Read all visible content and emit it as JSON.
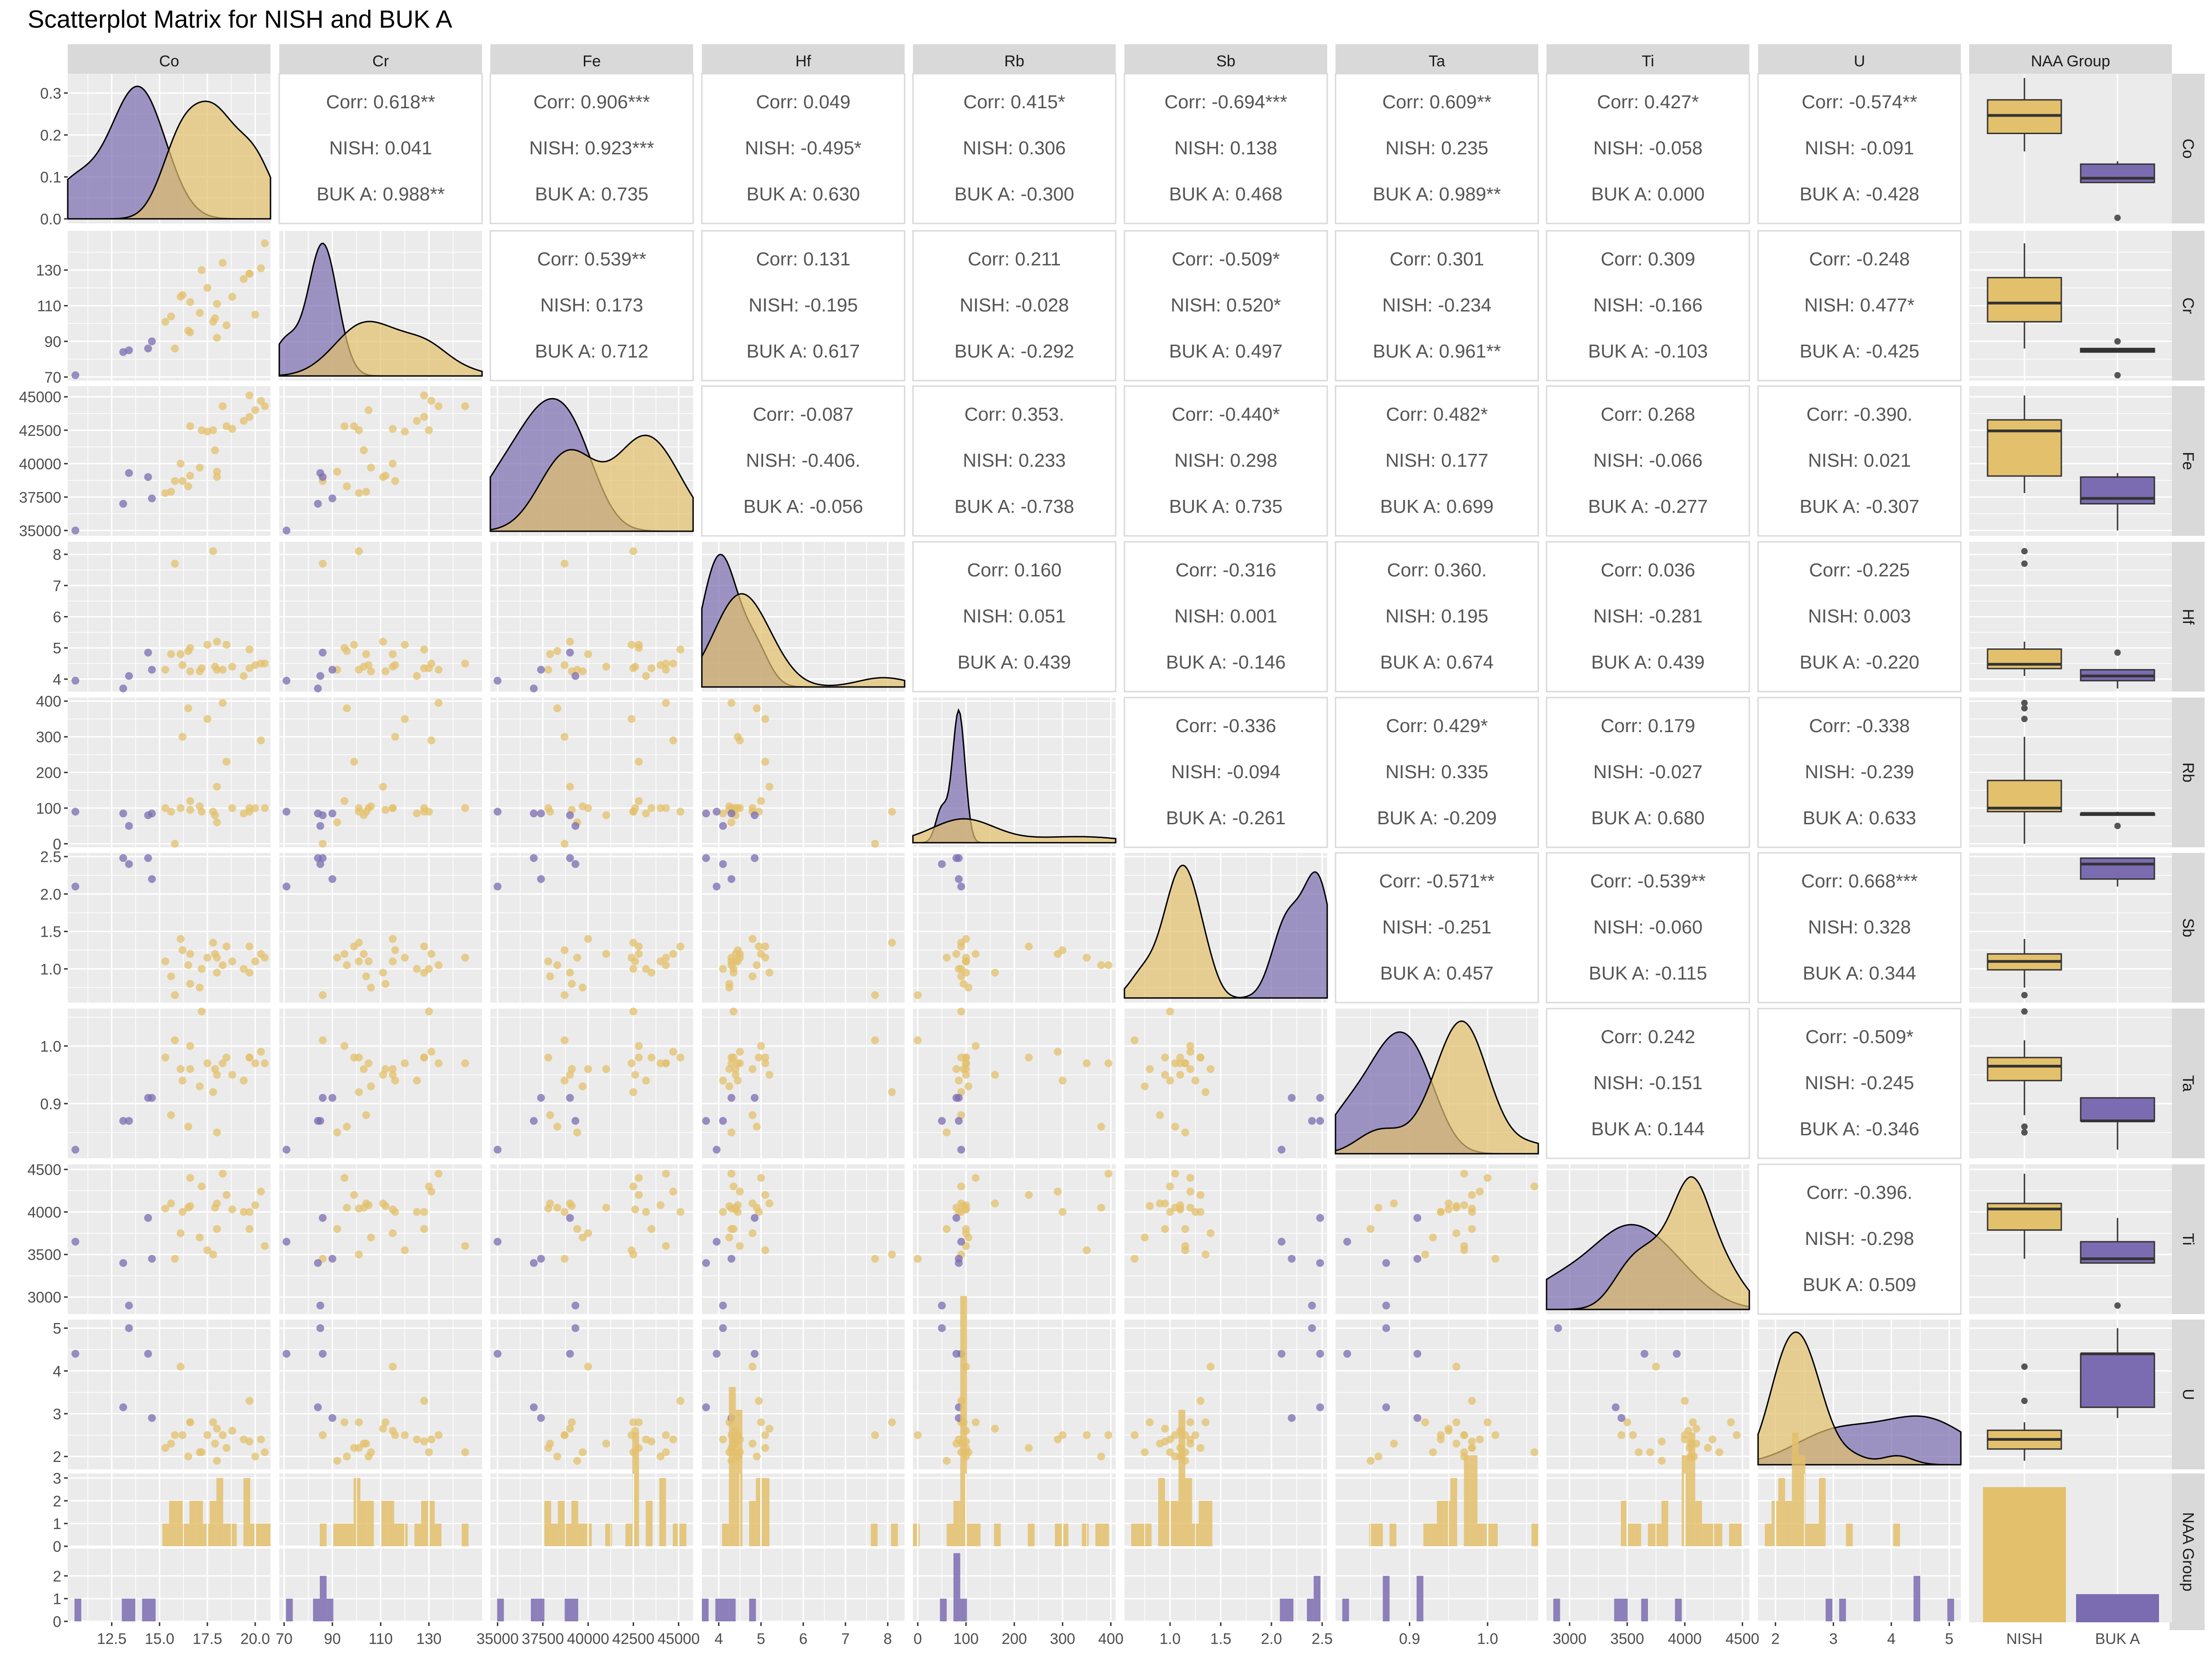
{
  "title": "Scatterplot Matrix for NISH and BUK A",
  "colors": {
    "NISH": "#e3c06c",
    "BUK A": "#7b6cb1",
    "panel_bg": "#ebebeb",
    "strip_bg": "#d9d9d9",
    "grid": "#ffffff",
    "text": "#4d4d4d",
    "axis_text": "#4d4d4d"
  },
  "chart_data": {
    "type": "scatterplot-matrix",
    "variables": [
      "Co",
      "Cr",
      "Fe",
      "Hf",
      "Rb",
      "Sb",
      "Ta",
      "Ti",
      "U"
    ],
    "group_variable": "NAA Group",
    "groups": [
      "NISH",
      "BUK A"
    ],
    "column_labels": [
      "Co",
      "Cr",
      "Fe",
      "Hf",
      "Rb",
      "Sb",
      "Ta",
      "Ti",
      "U",
      "NAA Group"
    ],
    "row_labels": [
      "Co",
      "Cr",
      "Fe",
      "Hf",
      "Rb",
      "Sb",
      "Ta",
      "Ti",
      "U",
      "NAA Group"
    ],
    "axis_ranges": {
      "Co": [
        10.2,
        20.8
      ],
      "Cr": [
        68,
        152
      ],
      "Fe": [
        34600,
        45800
      ],
      "Hf": [
        3.6,
        8.4
      ],
      "Rb": [
        -10,
        410
      ],
      "Sb": [
        0.55,
        2.55
      ],
      "Ta": [
        0.805,
        1.065
      ],
      "Ti": [
        2800,
        4560
      ],
      "U": [
        1.7,
        5.2
      ]
    },
    "x_ticks": {
      "Co": [
        12.5,
        15.0,
        17.5,
        20.0
      ],
      "Cr": [
        70,
        90,
        110,
        130
      ],
      "Fe": [
        35000,
        37500,
        40000,
        42500,
        45000
      ],
      "Hf": [
        4,
        5,
        6,
        7,
        8
      ],
      "Rb": [
        0,
        100,
        200,
        300,
        400
      ],
      "Sb": [
        1.0,
        1.5,
        2.0,
        2.5
      ],
      "Ta": [
        0.9,
        1.0
      ],
      "Ti": [
        3000,
        3500,
        4000,
        4500
      ],
      "U": [
        2,
        3,
        4,
        5
      ]
    },
    "x_tick_labels": {
      "Co": [
        "12.5",
        "15.0",
        "17.5",
        "20.0"
      ],
      "Cr": [
        "70",
        "90",
        "110",
        "130"
      ],
      "Fe": [
        "35000",
        "37500",
        "40000",
        "42500",
        "45000"
      ],
      "Hf": [
        "4",
        "5",
        "6",
        "7",
        "8"
      ],
      "Rb": [
        "0",
        "100",
        "200",
        "300",
        "400"
      ],
      "Sb": [
        "1.0",
        "1.5",
        "2.0",
        "2.5"
      ],
      "Ta": [
        "0.9",
        "1.0"
      ],
      "Ti": [
        "3000",
        "3500",
        "4000",
        "4500"
      ],
      "U": [
        "2",
        "3",
        "4",
        "5"
      ],
      "NAA Group": [
        "NISH",
        "BUK A"
      ]
    },
    "y_ticks": {
      "Co": [
        0.0,
        0.1,
        0.2,
        0.3
      ],
      "Cr": [
        70,
        90,
        110,
        130
      ],
      "Fe": [
        35000,
        37500,
        40000,
        42500,
        45000
      ],
      "Hf": [
        4,
        5,
        6,
        7,
        8
      ],
      "Rb": [
        0,
        100,
        200,
        300,
        400
      ],
      "Sb": [
        1.0,
        1.5,
        2.0,
        2.5
      ],
      "Ta": [
        0.9,
        1.0
      ],
      "Ti": [
        3000,
        3500,
        4000,
        4500
      ],
      "U": [
        2,
        3,
        4,
        5
      ]
    },
    "y_tick_labels": {
      "Co": [
        "0.0",
        "0.1",
        "0.2",
        "0.3"
      ],
      "Cr": [
        "70",
        "90",
        "110",
        "130"
      ],
      "Fe": [
        "35000",
        "37500",
        "40000",
        "42500",
        "45000"
      ],
      "Hf": [
        "4",
        "5",
        "6",
        "7",
        "8"
      ],
      "Rb": [
        "0",
        "100",
        "200",
        "300",
        "400"
      ],
      "Sb": [
        "1.0",
        "1.5",
        "2.0",
        "2.5"
      ],
      "Ta": [
        "0.9",
        "1.0"
      ],
      "Ti": [
        "3000",
        "3500",
        "4000",
        "4500"
      ],
      "U": [
        "2",
        "3",
        "4",
        "5"
      ],
      "NAA Group": [
        "0",
        "1",
        "2",
        "3"
      ]
    },
    "density_ylim": {
      "Co": [
        0,
        0.335
      ]
    },
    "correlations": [
      {
        "row": "Co",
        "col": "Cr",
        "corr": "Corr: 0.618**",
        "nish": "NISH: 0.041",
        "buk": "BUK A: 0.988**"
      },
      {
        "row": "Co",
        "col": "Fe",
        "corr": "Corr: 0.906***",
        "nish": "NISH: 0.923***",
        "buk": "BUK A: 0.735"
      },
      {
        "row": "Co",
        "col": "Hf",
        "corr": "Corr: 0.049",
        "nish": "NISH: -0.495*",
        "buk": "BUK A: 0.630"
      },
      {
        "row": "Co",
        "col": "Rb",
        "corr": "Corr: 0.415*",
        "nish": "NISH: 0.306",
        "buk": "BUK A: -0.300"
      },
      {
        "row": "Co",
        "col": "Sb",
        "corr": "Corr: -0.694***",
        "nish": "NISH: 0.138",
        "buk": "BUK A: 0.468"
      },
      {
        "row": "Co",
        "col": "Ta",
        "corr": "Corr: 0.609**",
        "nish": "NISH: 0.235",
        "buk": "BUK A: 0.989**"
      },
      {
        "row": "Co",
        "col": "Ti",
        "corr": "Corr: 0.427*",
        "nish": "NISH: -0.058",
        "buk": "BUK A: 0.000"
      },
      {
        "row": "Co",
        "col": "U",
        "corr": "Corr: -0.574**",
        "nish": "NISH: -0.091",
        "buk": "BUK A: -0.428"
      },
      {
        "row": "Cr",
        "col": "Fe",
        "corr": "Corr: 0.539**",
        "nish": "NISH: 0.173",
        "buk": "BUK A: 0.712"
      },
      {
        "row": "Cr",
        "col": "Hf",
        "corr": "Corr: 0.131",
        "nish": "NISH: -0.195",
        "buk": "BUK A: 0.617"
      },
      {
        "row": "Cr",
        "col": "Rb",
        "corr": "Corr: 0.211",
        "nish": "NISH: -0.028",
        "buk": "BUK A: -0.292"
      },
      {
        "row": "Cr",
        "col": "Sb",
        "corr": "Corr: -0.509*",
        "nish": "NISH: 0.520*",
        "buk": "BUK A: 0.497"
      },
      {
        "row": "Cr",
        "col": "Ta",
        "corr": "Corr: 0.301",
        "nish": "NISH: -0.234",
        "buk": "BUK A: 0.961**"
      },
      {
        "row": "Cr",
        "col": "Ti",
        "corr": "Corr: 0.309",
        "nish": "NISH: -0.166",
        "buk": "BUK A: -0.103"
      },
      {
        "row": "Cr",
        "col": "U",
        "corr": "Corr: -0.248",
        "nish": "NISH: 0.477*",
        "buk": "BUK A: -0.425"
      },
      {
        "row": "Fe",
        "col": "Hf",
        "corr": "Corr: -0.087",
        "nish": "NISH: -0.406.",
        "buk": "BUK A: -0.056"
      },
      {
        "row": "Fe",
        "col": "Rb",
        "corr": "Corr: 0.353.",
        "nish": "NISH: 0.233",
        "buk": "BUK A: -0.738"
      },
      {
        "row": "Fe",
        "col": "Sb",
        "corr": "Corr: -0.440*",
        "nish": "NISH: 0.298",
        "buk": "BUK A: 0.735"
      },
      {
        "row": "Fe",
        "col": "Ta",
        "corr": "Corr: 0.482*",
        "nish": "NISH: 0.177",
        "buk": "BUK A: 0.699"
      },
      {
        "row": "Fe",
        "col": "Ti",
        "corr": "Corr: 0.268",
        "nish": "NISH: -0.066",
        "buk": "BUK A: -0.277"
      },
      {
        "row": "Fe",
        "col": "U",
        "corr": "Corr: -0.390.",
        "nish": "NISH: 0.021",
        "buk": "BUK A: -0.307"
      },
      {
        "row": "Hf",
        "col": "Rb",
        "corr": "Corr: 0.160",
        "nish": "NISH: 0.051",
        "buk": "BUK A: 0.439"
      },
      {
        "row": "Hf",
        "col": "Sb",
        "corr": "Corr: -0.316",
        "nish": "NISH: 0.001",
        "buk": "BUK A: -0.146"
      },
      {
        "row": "Hf",
        "col": "Ta",
        "corr": "Corr: 0.360.",
        "nish": "NISH: 0.195",
        "buk": "BUK A: 0.674"
      },
      {
        "row": "Hf",
        "col": "Ti",
        "corr": "Corr: 0.036",
        "nish": "NISH: -0.281",
        "buk": "BUK A: 0.439"
      },
      {
        "row": "Hf",
        "col": "U",
        "corr": "Corr: -0.225",
        "nish": "NISH: 0.003",
        "buk": "BUK A: -0.220"
      },
      {
        "row": "Rb",
        "col": "Sb",
        "corr": "Corr: -0.336",
        "nish": "NISH: -0.094",
        "buk": "BUK A: -0.261"
      },
      {
        "row": "Rb",
        "col": "Ta",
        "corr": "Corr: 0.429*",
        "nish": "NISH: 0.335",
        "buk": "BUK A: -0.209"
      },
      {
        "row": "Rb",
        "col": "Ti",
        "corr": "Corr: 0.179",
        "nish": "NISH: -0.027",
        "buk": "BUK A: 0.680"
      },
      {
        "row": "Rb",
        "col": "U",
        "corr": "Corr: -0.338",
        "nish": "NISH: -0.239",
        "buk": "BUK A: 0.633"
      },
      {
        "row": "Sb",
        "col": "Ta",
        "corr": "Corr: -0.571**",
        "nish": "NISH: -0.251",
        "buk": "BUK A: 0.457"
      },
      {
        "row": "Sb",
        "col": "Ti",
        "corr": "Corr: -0.539**",
        "nish": "NISH: -0.060",
        "buk": "BUK A: -0.115"
      },
      {
        "row": "Sb",
        "col": "U",
        "corr": "Corr: 0.668***",
        "nish": "NISH: 0.328",
        "buk": "BUK A: 0.344"
      },
      {
        "row": "Ta",
        "col": "Ti",
        "corr": "Corr: 0.242",
        "nish": "NISH: -0.151",
        "buk": "BUK A: 0.144"
      },
      {
        "row": "Ta",
        "col": "U",
        "corr": "Corr: -0.509*",
        "nish": "NISH: -0.245",
        "buk": "BUK A: -0.346"
      },
      {
        "row": "Ti",
        "col": "U",
        "corr": "Corr: -0.396.",
        "nish": "NISH: -0.298",
        "buk": "BUK A: 0.509"
      }
    ],
    "observations": {
      "NISH": [
        {
          "Co": 17.2,
          "Cr": 130,
          "Fe": 42500,
          "Hf": 4.35,
          "Rb": 90,
          "Sb": 1.0,
          "Ta": 1.06,
          "Ti": 4300,
          "U": 2.1
        },
        {
          "Co": 17.9,
          "Cr": 103,
          "Fe": 41000,
          "Hf": 4.4,
          "Rb": 80,
          "Sb": 1.2,
          "Ta": 0.96,
          "Ti": 4050,
          "U": 2.3
        },
        {
          "Co": 20.0,
          "Cr": 105,
          "Fe": 44000,
          "Hf": 4.45,
          "Rb": 100,
          "Sb": 1.1,
          "Ta": 0.97,
          "Ti": 4080,
          "U": 2.0
        },
        {
          "Co": 18.5,
          "Cr": 99,
          "Fe": 42800,
          "Hf": 5.1,
          "Rb": 230,
          "Sb": 1.3,
          "Ta": 0.98,
          "Ti": 4200,
          "U": 2.2
        },
        {
          "Co": 19.7,
          "Cr": 128,
          "Fe": 43500,
          "Hf": 4.35,
          "Rb": 100,
          "Sb": 0.95,
          "Ta": 0.98,
          "Ti": 3800,
          "U": 2.35
        },
        {
          "Co": 18.3,
          "Cr": 134,
          "Fe": 44300,
          "Hf": 4.3,
          "Rb": 395,
          "Sb": 1.05,
          "Ta": 0.97,
          "Ti": 4450,
          "U": 2.5
        },
        {
          "Co": 20.3,
          "Cr": 131,
          "Fe": 44700,
          "Hf": 4.5,
          "Rb": 290,
          "Sb": 1.2,
          "Ta": 0.99,
          "Ti": 4240,
          "U": 2.4
        },
        {
          "Co": 19.7,
          "Cr": 128,
          "Fe": 45100,
          "Hf": 4.95,
          "Rb": 90,
          "Sb": 1.3,
          "Ta": 0.98,
          "Ti": 4000,
          "U": 3.3
        },
        {
          "Co": 17.5,
          "Cr": 120,
          "Fe": 42400,
          "Hf": 5.1,
          "Rb": 350,
          "Sb": 1.15,
          "Ta": 0.97,
          "Ti": 3550,
          "U": 2.5
        },
        {
          "Co": 18.8,
          "Cr": 115,
          "Fe": 42600,
          "Hf": 4.4,
          "Rb": 100,
          "Sb": 1.1,
          "Ta": 0.95,
          "Ti": 4030,
          "U": 2.6
        },
        {
          "Co": 16.6,
          "Cr": 112,
          "Fe": 39100,
          "Hf": 4.25,
          "Rb": 95,
          "Sb": 0.8,
          "Ta": 0.96,
          "Ti": 4070,
          "U": 2.8
        },
        {
          "Co": 16.2,
          "Cr": 116,
          "Fe": 38700,
          "Hf": 4.45,
          "Rb": 300,
          "Sb": 1.25,
          "Ta": 0.94,
          "Ti": 4000,
          "U": 2.5
        },
        {
          "Co": 18.0,
          "Cr": 111,
          "Fe": 39000,
          "Hf": 5.2,
          "Rb": 160,
          "Sb": 0.95,
          "Ta": 0.95,
          "Ti": 4100,
          "U": 2.65
        },
        {
          "Co": 16.1,
          "Cr": 115,
          "Fe": 40000,
          "Hf": 4.8,
          "Rb": 100,
          "Sb": 1.4,
          "Ta": 0.96,
          "Ti": 3750,
          "U": 4.1
        },
        {
          "Co": 17.1,
          "Cr": 106,
          "Fe": 39700,
          "Hf": 4.25,
          "Rb": 105,
          "Sb": 0.75,
          "Ta": 0.93,
          "Ti": 3700,
          "U": 2.1
        },
        {
          "Co": 15.6,
          "Cr": 104,
          "Fe": 37900,
          "Hf": 4.8,
          "Rb": 90,
          "Sb": 0.9,
          "Ta": 0.88,
          "Ti": 4100,
          "U": 2.3
        },
        {
          "Co": 16.5,
          "Cr": 96,
          "Fe": 38300,
          "Hf": 4.9,
          "Rb": 380,
          "Sb": 1.05,
          "Ta": 0.86,
          "Ti": 4050,
          "U": 2.0
        },
        {
          "Co": 15.3,
          "Cr": 101,
          "Fe": 37800,
          "Hf": 4.3,
          "Rb": 100,
          "Sb": 1.1,
          "Ta": 0.98,
          "Ti": 4040,
          "U": 2.2
        },
        {
          "Co": 17.8,
          "Cr": 101,
          "Fe": 42500,
          "Hf": 8.1,
          "Rb": 90,
          "Sb": 1.35,
          "Ta": 0.92,
          "Ti": 3500,
          "U": 2.8
        },
        {
          "Co": 15.8,
          "Cr": 86,
          "Fe": 38700,
          "Hf": 7.7,
          "Rb": 0,
          "Sb": 0.65,
          "Ta": 1.01,
          "Ti": 3450,
          "U": 2.5
        },
        {
          "Co": 18.0,
          "Cr": 92,
          "Fe": 39400,
          "Hf": 4.3,
          "Rb": 60,
          "Sb": 1.15,
          "Ta": 0.85,
          "Ti": 3800,
          "U": 1.9
        },
        {
          "Co": 20.5,
          "Cr": 145,
          "Fe": 44300,
          "Hf": 4.5,
          "Rb": 100,
          "Sb": 1.15,
          "Ta": 0.97,
          "Ti": 3600,
          "U": 2.1
        },
        {
          "Co": 16.6,
          "Cr": 95,
          "Fe": 42800,
          "Hf": 5.0,
          "Rb": 120,
          "Sb": 1.2,
          "Ta": 1.0,
          "Ti": 4400,
          "U": 2.8
        },
        {
          "Co": 19.4,
          "Cr": 125,
          "Fe": 43200,
          "Hf": 4.1,
          "Rb": 85,
          "Sb": 1.0,
          "Ta": 0.94,
          "Ti": 4000,
          "U": 2.4
        }
      ],
      "BUK A": [
        {
          "Co": 10.6,
          "Cr": 71,
          "Fe": 35000,
          "Hf": 3.95,
          "Rb": 90,
          "Sb": 2.1,
          "Ta": 0.82,
          "Ti": 3650,
          "U": 4.4
        },
        {
          "Co": 13.1,
          "Cr": 84,
          "Fe": 37000,
          "Hf": 3.7,
          "Rb": 85,
          "Sb": 2.48,
          "Ta": 0.87,
          "Ti": 3400,
          "U": 3.15
        },
        {
          "Co": 13.4,
          "Cr": 85,
          "Fe": 39300,
          "Hf": 4.1,
          "Rb": 50,
          "Sb": 2.4,
          "Ta": 0.87,
          "Ti": 2900,
          "U": 5.0
        },
        {
          "Co": 14.6,
          "Cr": 90,
          "Fe": 37400,
          "Hf": 4.3,
          "Rb": 85,
          "Sb": 2.2,
          "Ta": 0.91,
          "Ti": 3450,
          "U": 2.9
        },
        {
          "Co": 14.4,
          "Cr": 86,
          "Fe": 39000,
          "Hf": 4.85,
          "Rb": 80,
          "Sb": 2.48,
          "Ta": 0.91,
          "Ti": 3930,
          "U": 4.4
        }
      ]
    }
  }
}
